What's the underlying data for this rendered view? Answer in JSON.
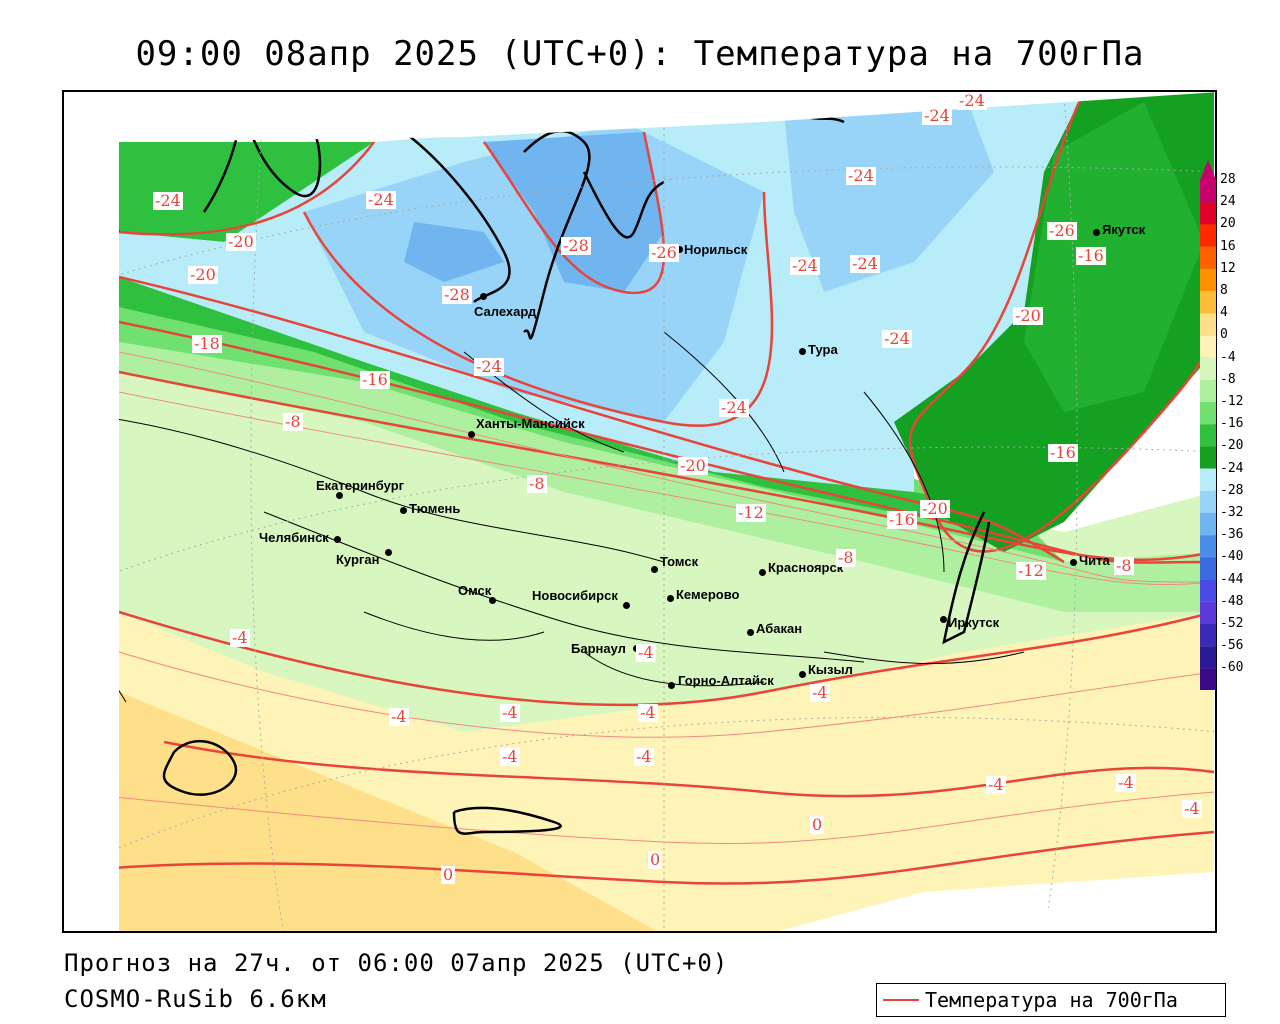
{
  "title": "09:00 08апр 2025 (UTC+0): Температура на 700гПа",
  "footer": {
    "forecast": "Прогноз на 27ч. от 06:00 07апр 2025 (UTC+0)",
    "model": "COSMO-RuSib 6.6км"
  },
  "legend": {
    "label": "Температура на 700гПа",
    "line_color": "#e8443a"
  },
  "color_scale": {
    "ticks": [
      "28",
      "24",
      "20",
      "16",
      "12",
      "8",
      "4",
      "0",
      "-4",
      "-8",
      "-12",
      "-16",
      "-20",
      "-24",
      "-28",
      "-32",
      "-36",
      "-40",
      "-44",
      "-48",
      "-52",
      "-56",
      "-60"
    ],
    "colors": [
      "#c8006e",
      "#e0002a",
      "#ff2a00",
      "#ff6000",
      "#ff9000",
      "#ffbc38",
      "#ffe08a",
      "#fff4b8",
      "#d8f7c0",
      "#aef0a0",
      "#70e070",
      "#30c040",
      "#14a020",
      "#b8ecf8",
      "#98d4f8",
      "#70b4f0",
      "#4a8ee8",
      "#3a6ae0",
      "#4a4ae8",
      "#5a3ad8",
      "#3a2ab8",
      "#2a1a98",
      "#3a0a88"
    ]
  },
  "cities": [
    {
      "name": "Якутск"
    },
    {
      "name": "Норильск"
    },
    {
      "name": "Салехард"
    },
    {
      "name": "Тура"
    },
    {
      "name": "Ханты-Мансийск"
    },
    {
      "name": "Екатеринбург"
    },
    {
      "name": "Тюмень"
    },
    {
      "name": "Челябинск"
    },
    {
      "name": "Курган"
    },
    {
      "name": "Омск"
    },
    {
      "name": "Новосибирск"
    },
    {
      "name": "Томск"
    },
    {
      "name": "Кемерово"
    },
    {
      "name": "Красноярск"
    },
    {
      "name": "Абакан"
    },
    {
      "name": "Барнаул"
    },
    {
      "name": "Горно-Алтайск"
    },
    {
      "name": "Кызыл"
    },
    {
      "name": "Иркутск"
    },
    {
      "name": "Чита"
    }
  ],
  "contour_labels": [
    "-24",
    "-24",
    "-24",
    "-24",
    "-24",
    "-28",
    "-28",
    "-26",
    "-24",
    "-24",
    "-24",
    "-24",
    "-20",
    "-20",
    "-20",
    "-20",
    "-16",
    "-16",
    "-18",
    "-16",
    "-16",
    "-12",
    "-12",
    "-8",
    "-8",
    "-8",
    "-8",
    "-20",
    "-4",
    "-4",
    "-4",
    "-4",
    "-4",
    "-4",
    "-4",
    "-4",
    "-4",
    "-4",
    "-4",
    "0",
    "0",
    "0",
    "-26",
    "-24"
  ]
}
